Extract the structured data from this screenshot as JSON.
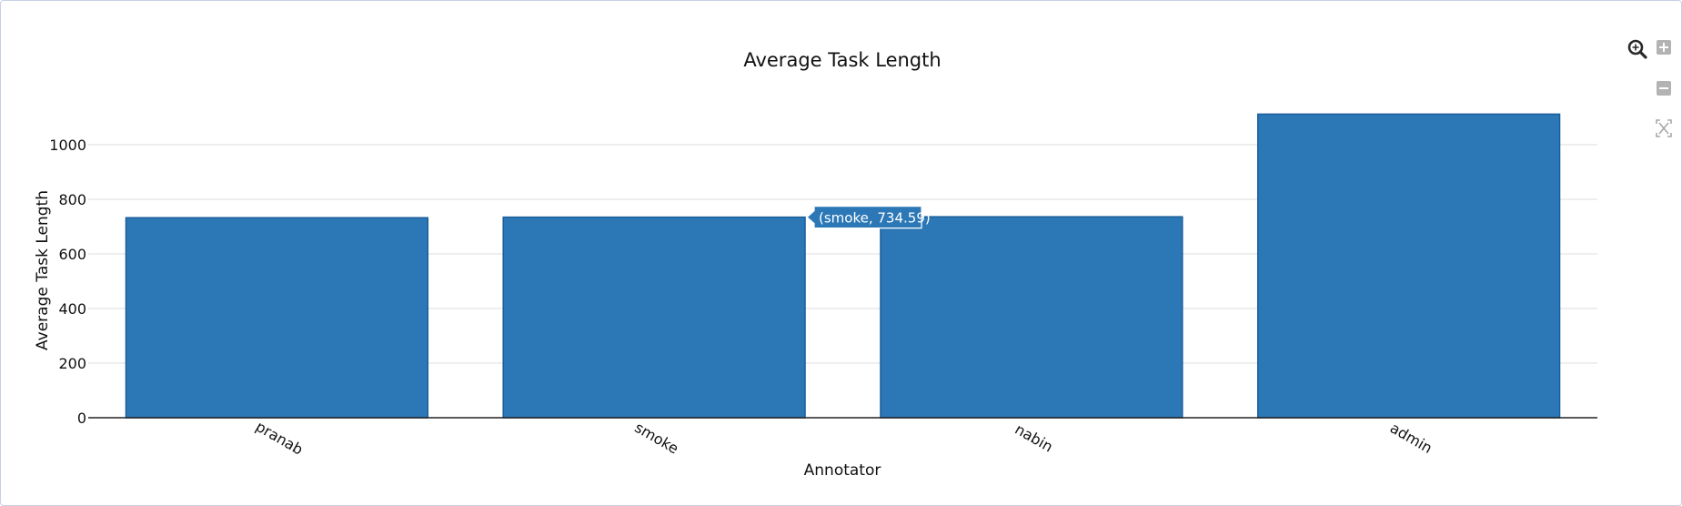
{
  "toolbar": {
    "icons": [
      "zoom-icon",
      "zoom-in-icon",
      "zoom-out-icon",
      "reset-zoom-icon"
    ]
  },
  "chart_data": {
    "type": "bar",
    "title": "Average Task Length",
    "xlabel": "Annotator",
    "ylabel": "Average Task Length",
    "categories": [
      "pranab",
      "smoke",
      "nabin",
      "admin"
    ],
    "values": [
      732.5,
      734.59,
      736.0,
      1112.0
    ],
    "ylim": [
      0,
      1200
    ],
    "yticks": [
      0,
      200,
      400,
      600,
      800,
      1000
    ],
    "ytick_labels": [
      "0",
      "200",
      "400",
      "600",
      "800",
      "1000"
    ],
    "grid": true,
    "bar_color": "#2c78b6",
    "bar_edge_color": "#1a5d9a",
    "tooltip": {
      "text": "(smoke, 734.59)",
      "category": "smoke",
      "value": 734.59,
      "color": "#2c78b6"
    }
  }
}
